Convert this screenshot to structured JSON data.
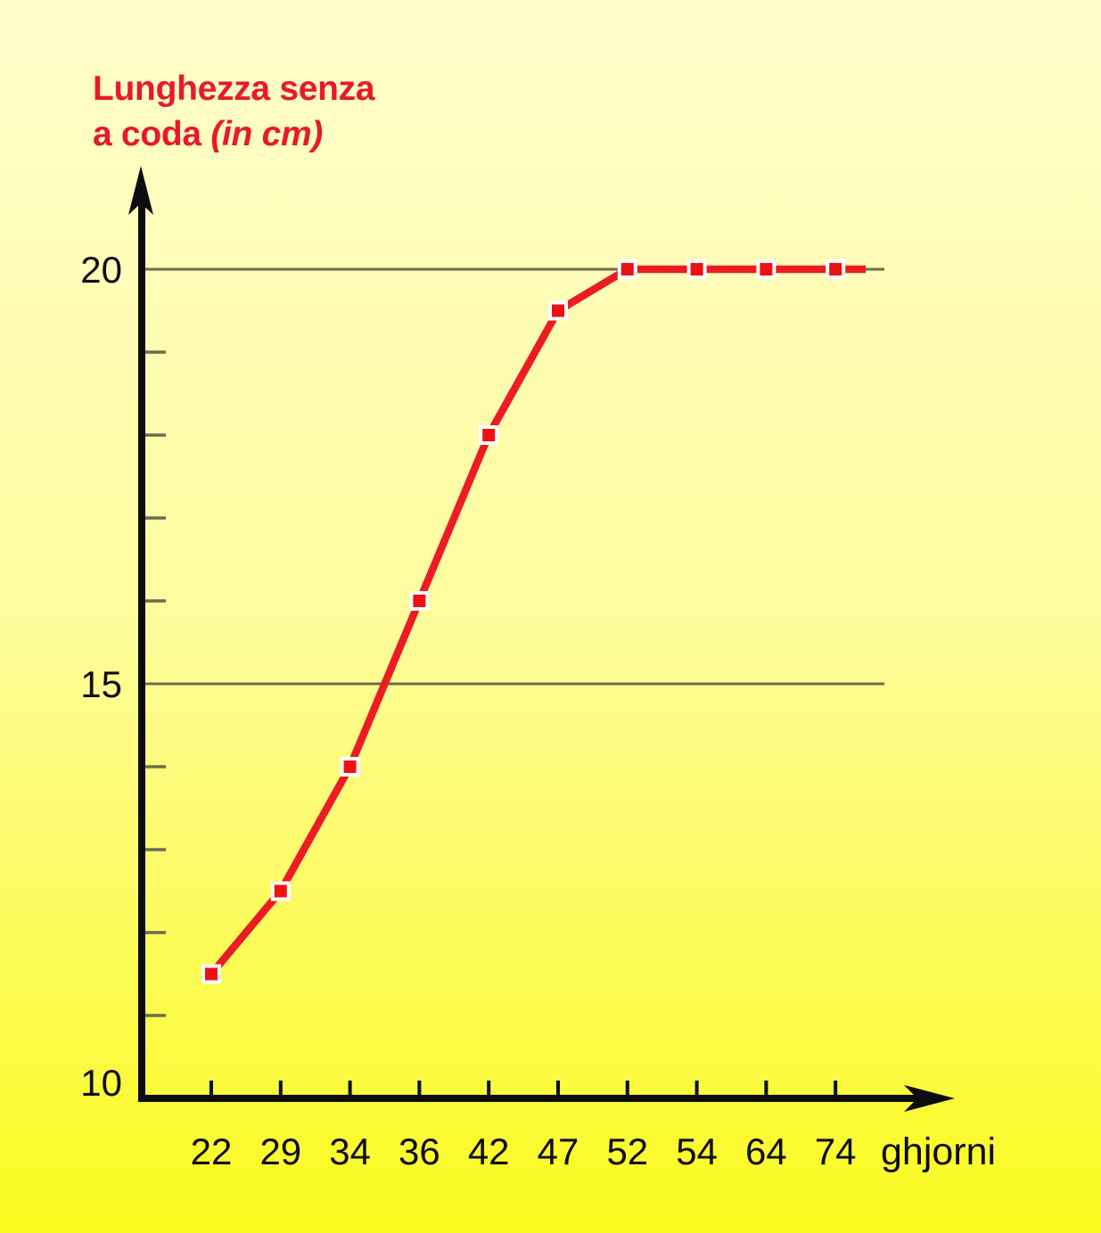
{
  "chart": {
    "title_line1": "Lunghezza senza",
    "title_line2": "a coda",
    "title_unit": "(in cm)"
  },
  "chart_data": {
    "type": "line",
    "title": "Lunghezza senza a coda (in cm)",
    "xlabel": "ghjorni",
    "ylabel": "Lunghezza senza a coda (in cm)",
    "categories": [
      "22",
      "29",
      "34",
      "36",
      "42",
      "47",
      "52",
      "54",
      "64",
      "74"
    ],
    "values": [
      11.5,
      12.5,
      14,
      16,
      18,
      19.5,
      20,
      20,
      20,
      20
    ],
    "series_note": "single series, equal categorical x-spacing despite non-uniform day values",
    "ylim": [
      10,
      21
    ],
    "y_axis_labels": [
      10,
      15,
      20
    ],
    "y_gridlines": [
      15,
      20
    ],
    "y_minor_ticks": [
      11,
      12,
      13,
      14,
      16,
      17,
      18,
      19
    ],
    "grid": "horizontal lines at 15 and 20 only",
    "legend": "none",
    "marker": "square",
    "colors": {
      "line": "#ec1c24",
      "marker": "#ee1111",
      "marker_border": "#ffffff",
      "grid": "#6c6c4e",
      "axis": "#0d0d0d",
      "title": "#e8192c",
      "background_top": "#fffdcb",
      "background_bottom": "#fafa1e"
    }
  }
}
